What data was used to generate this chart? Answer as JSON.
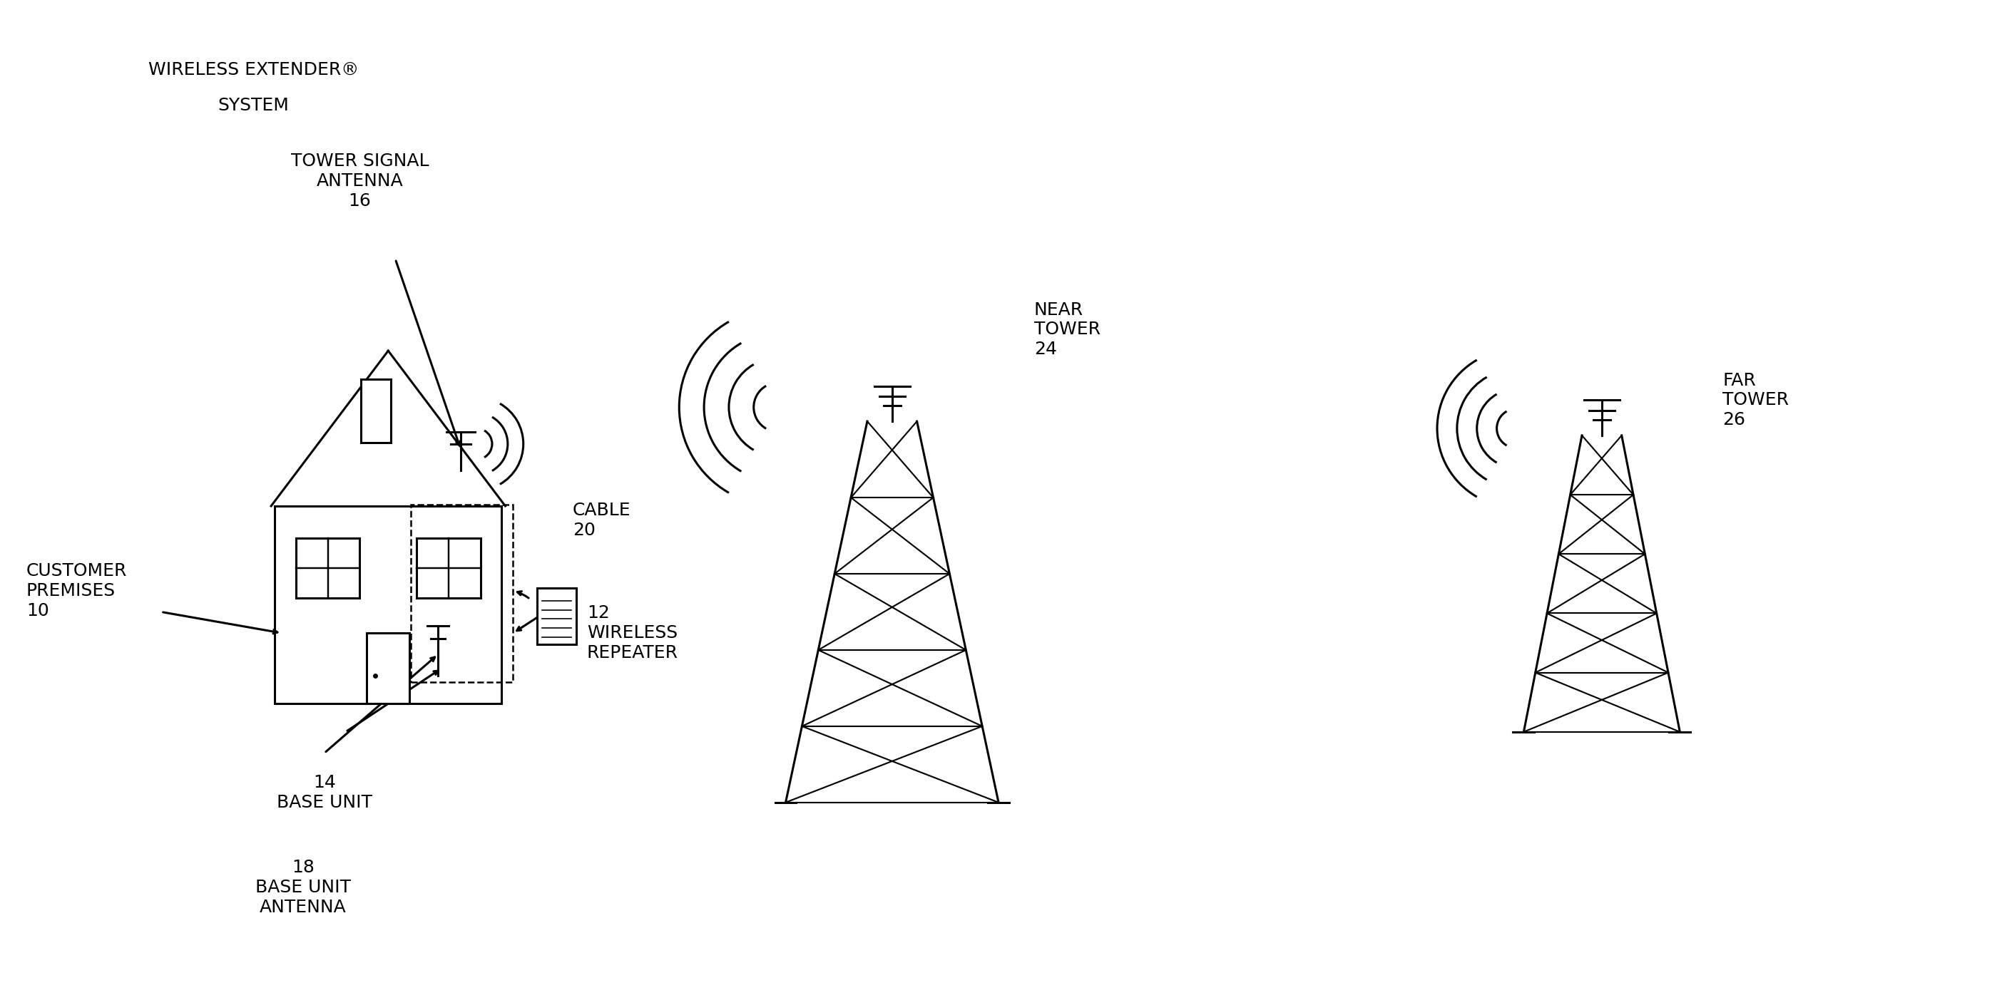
{
  "bg_color": "#ffffff",
  "line_color": "#000000",
  "fig_width": 28.21,
  "fig_height": 14.1,
  "labels": {
    "title_line1": "WIRELESS EXTENDER®",
    "title_line2": "SYSTEM",
    "customer_premises": "CUSTOMER\nPREMISES\n10",
    "tower_signal_antenna": "TOWER SIGNAL\nANTENNA\n16",
    "cable": "CABLE\n20",
    "base_unit": "14\nBASE UNIT",
    "base_unit_antenna": "18\nBASE UNIT\nANTENNA",
    "wireless_repeater": "12\nWIRELESS\nREPEATER",
    "near_tower": "NEAR\nTOWER\n24",
    "far_tower": "FAR\nTOWER\n26"
  },
  "font_size": 18
}
